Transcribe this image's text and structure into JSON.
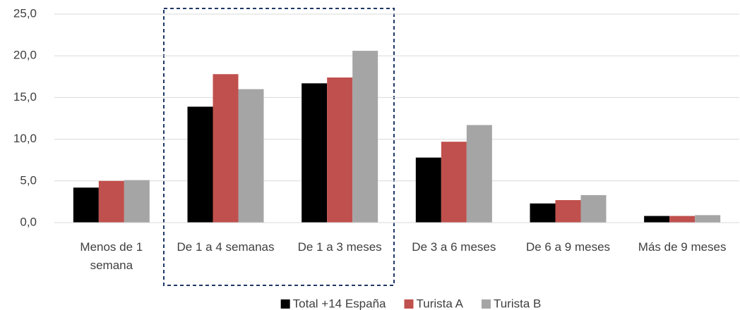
{
  "chart_data": {
    "type": "bar",
    "categories": [
      "Menos de 1 semana",
      "De 1 a 4 semanas",
      "De 1 a 3 meses",
      "De 3 a 6 meses",
      "De 6 a 9 meses",
      "Más de 9 meses"
    ],
    "series": [
      {
        "name": "Total +14 España",
        "color": "#000000",
        "values": [
          4.2,
          13.9,
          16.7,
          7.8,
          2.3,
          0.8
        ]
      },
      {
        "name": "Turista A",
        "color": "#c0504d",
        "values": [
          5.0,
          17.8,
          17.4,
          9.7,
          2.7,
          0.8
        ]
      },
      {
        "name": "Turista B",
        "color": "#a5a5a5",
        "values": [
          5.1,
          16.0,
          20.6,
          11.7,
          3.3,
          0.9
        ]
      }
    ],
    "ylim": [
      0,
      25
    ],
    "yticks": [
      {
        "value": 0,
        "label": "0,0"
      },
      {
        "value": 5,
        "label": "5,0"
      },
      {
        "value": 10,
        "label": "10,0"
      },
      {
        "value": 15,
        "label": "15,0"
      },
      {
        "value": 20,
        "label": "20,0"
      },
      {
        "value": 25,
        "label": "25,0"
      }
    ],
    "grid": true,
    "legend": "bottom"
  }
}
